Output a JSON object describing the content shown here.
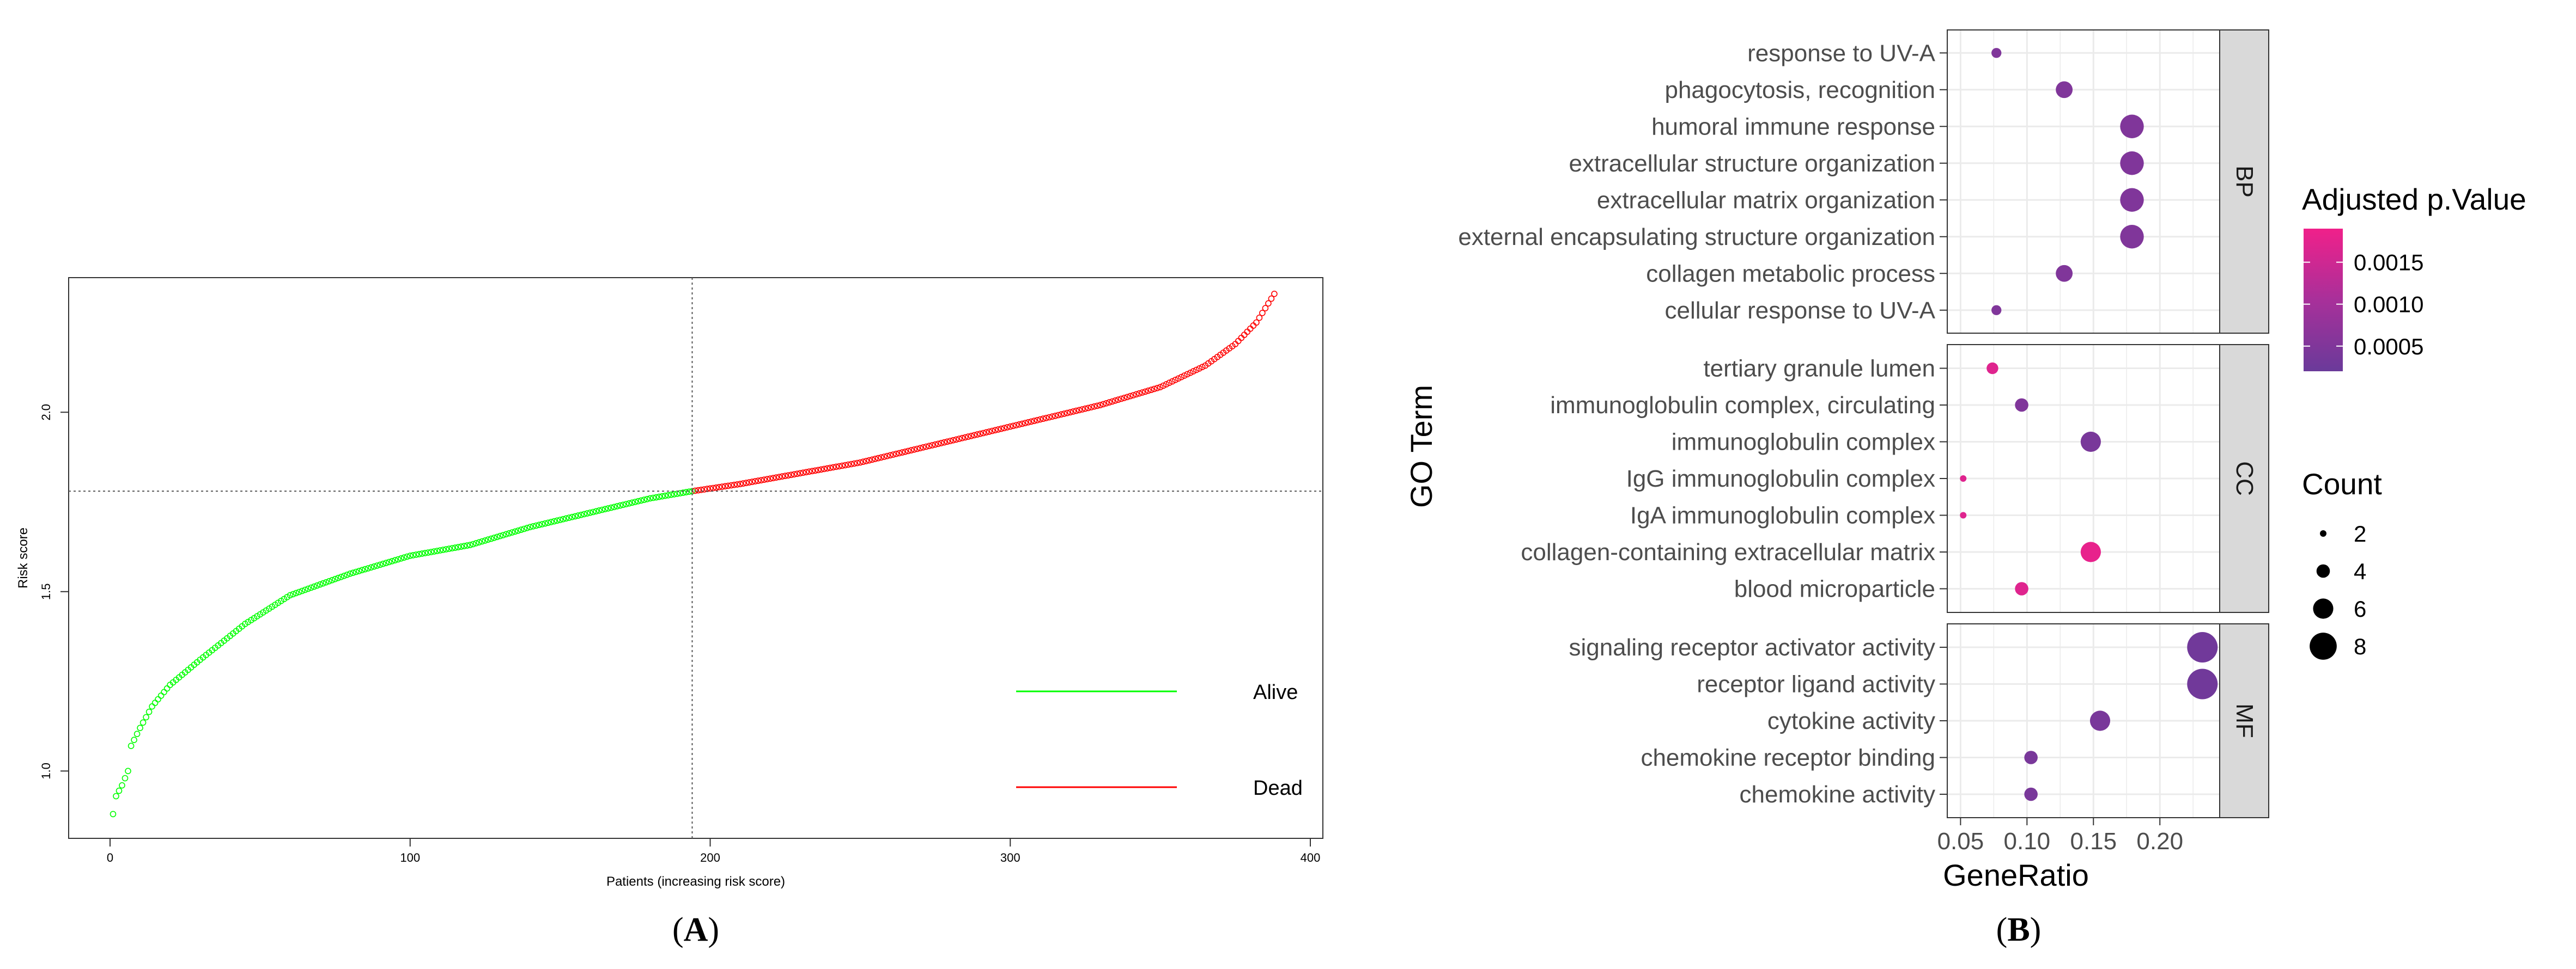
{
  "panelA": {
    "label": "A",
    "xlabel": "Patients (increasing risk score)",
    "ylabel": "Risk score",
    "x_ticks": [
      "0",
      "100",
      "200",
      "300",
      "400"
    ],
    "y_ticks": [
      "1.0",
      "1.5",
      "2.0"
    ],
    "legend": [
      {
        "label": "Alive",
        "color": "#00ff00"
      },
      {
        "label": "Dead",
        "color": "#ff0000"
      }
    ],
    "colors": {
      "alive": "#00ff00",
      "dead": "#ff0000",
      "cutoff": "#555555"
    }
  },
  "panelB": {
    "label": "B",
    "xlabel": "GeneRatio",
    "ylabel": "GO Term",
    "x_ticks": [
      "0.05",
      "0.10",
      "0.15",
      "0.20"
    ],
    "color_legend_title": "Adjusted p.Value",
    "color_ticks": [
      "0.0015",
      "0.0010",
      "0.0005"
    ],
    "size_legend_title": "Count",
    "size_ticks": [
      "2",
      "4",
      "6",
      "8"
    ],
    "colors": {
      "low": "#6a3a9a",
      "high": "#f0208a",
      "strip": "#d9d9d9",
      "grid": "#ebebeb"
    }
  },
  "chart_data": [
    {
      "type": "scatter",
      "xlabel": "Patients (increasing risk score)",
      "ylabel": "Risk score",
      "xlim": [
        0,
        400
      ],
      "ylim": [
        0.87,
        2.36
      ],
      "n_patients": 388,
      "cutoff_patient": 194,
      "cutoff_risk": 1.78,
      "curve": [
        [
          1,
          0.88
        ],
        [
          2,
          0.93
        ],
        [
          4,
          0.96
        ],
        [
          6,
          1.0
        ],
        [
          7,
          1.07
        ],
        [
          10,
          1.12
        ],
        [
          14,
          1.18
        ],
        [
          20,
          1.24
        ],
        [
          30,
          1.31
        ],
        [
          45,
          1.41
        ],
        [
          60,
          1.49
        ],
        [
          80,
          1.55
        ],
        [
          100,
          1.6
        ],
        [
          120,
          1.63
        ],
        [
          140,
          1.68
        ],
        [
          160,
          1.72
        ],
        [
          180,
          1.76
        ],
        [
          194,
          1.78
        ],
        [
          210,
          1.8
        ],
        [
          230,
          1.83
        ],
        [
          250,
          1.86
        ],
        [
          270,
          1.9
        ],
        [
          290,
          1.94
        ],
        [
          310,
          1.98
        ],
        [
          330,
          2.02
        ],
        [
          350,
          2.07
        ],
        [
          365,
          2.13
        ],
        [
          375,
          2.19
        ],
        [
          382,
          2.25
        ],
        [
          388,
          2.33
        ]
      ],
      "series": [
        {
          "name": "Alive",
          "patients": [
            1,
            194
          ]
        },
        {
          "name": "Dead",
          "patients": [
            195,
            388
          ]
        }
      ]
    },
    {
      "type": "scatter",
      "xlabel": "GeneRatio",
      "ylabel": "GO Term",
      "xlim": [
        0.04,
        0.245
      ],
      "color_range": [
        0.0002,
        0.0019
      ],
      "size_range": [
        2,
        9
      ],
      "facets": [
        {
          "name": "BP",
          "terms": [
            {
              "term": "response to UV-A",
              "ratio": 0.077,
              "count": 3,
              "padj": 0.0005
            },
            {
              "term": "phagocytosis, recognition",
              "ratio": 0.128,
              "count": 5,
              "padj": 0.0005
            },
            {
              "term": "humoral immune response",
              "ratio": 0.179,
              "count": 7,
              "padj": 0.0005
            },
            {
              "term": "extracellular structure organization",
              "ratio": 0.179,
              "count": 7,
              "padj": 0.0005
            },
            {
              "term": "extracellular matrix organization",
              "ratio": 0.179,
              "count": 7,
              "padj": 0.0005
            },
            {
              "term": "external encapsulating structure organization",
              "ratio": 0.179,
              "count": 7,
              "padj": 0.0005
            },
            {
              "term": "collagen metabolic process",
              "ratio": 0.128,
              "count": 5,
              "padj": 0.0005
            },
            {
              "term": "cellular response to UV-A",
              "ratio": 0.077,
              "count": 3,
              "padj": 0.0005
            }
          ]
        },
        {
          "name": "CC",
          "terms": [
            {
              "term": "tertiary granule lumen",
              "ratio": 0.074,
              "count": 3.5,
              "padj": 0.0017
            },
            {
              "term": "immunoglobulin complex, circulating",
              "ratio": 0.096,
              "count": 4,
              "padj": 0.0005
            },
            {
              "term": "immunoglobulin complex",
              "ratio": 0.148,
              "count": 6,
              "padj": 0.0004
            },
            {
              "term": "IgG immunoglobulin complex",
              "ratio": 0.052,
              "count": 2,
              "padj": 0.0017
            },
            {
              "term": "IgA immunoglobulin complex",
              "ratio": 0.052,
              "count": 2,
              "padj": 0.0017
            },
            {
              "term": "collagen-containing extracellular matrix",
              "ratio": 0.148,
              "count": 6,
              "padj": 0.0018
            },
            {
              "term": "blood microparticle",
              "ratio": 0.096,
              "count": 4,
              "padj": 0.0017
            }
          ]
        },
        {
          "name": "MF",
          "terms": [
            {
              "term": "signaling receptor activator activity",
              "ratio": 0.232,
              "count": 9,
              "padj": 0.0003
            },
            {
              "term": "receptor ligand activity",
              "ratio": 0.232,
              "count": 9,
              "padj": 0.0003
            },
            {
              "term": "cytokine activity",
              "ratio": 0.155,
              "count": 6,
              "padj": 0.0004
            },
            {
              "term": "chemokine receptor binding",
              "ratio": 0.103,
              "count": 4,
              "padj": 0.0004
            },
            {
              "term": "chemokine activity",
              "ratio": 0.103,
              "count": 4,
              "padj": 0.0004
            }
          ]
        }
      ]
    }
  ]
}
